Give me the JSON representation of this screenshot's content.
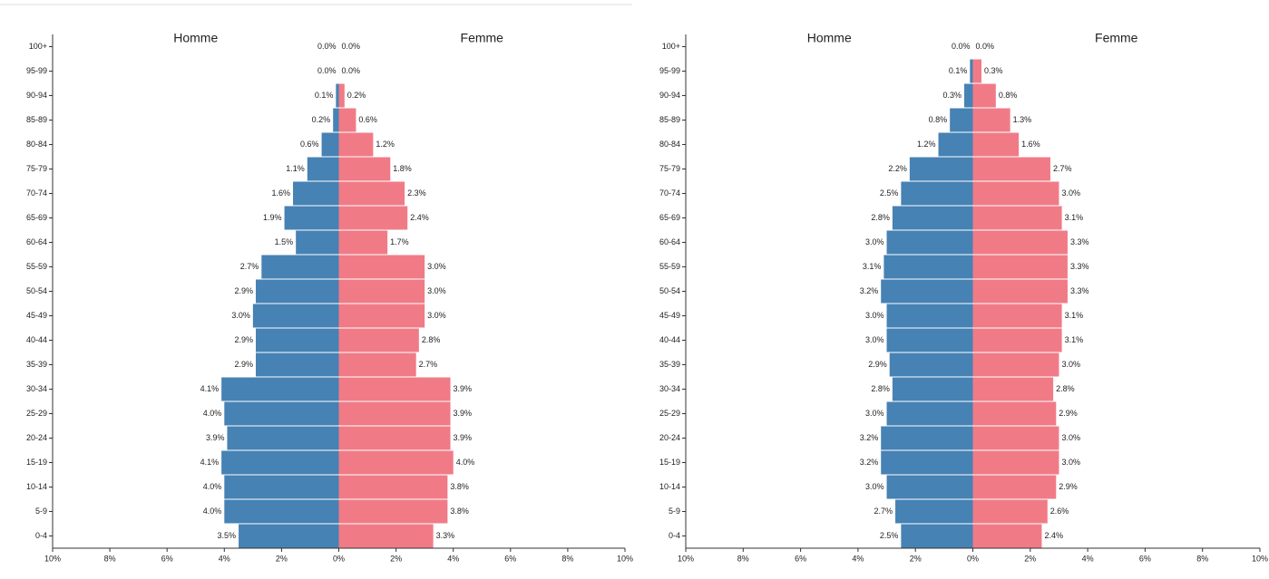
{
  "chart_data": [
    {
      "type": "pyramid",
      "categories": [
        "0-4",
        "5-9",
        "10-14",
        "15-19",
        "20-24",
        "25-29",
        "30-34",
        "35-39",
        "40-44",
        "45-49",
        "50-54",
        "55-59",
        "60-64",
        "65-69",
        "70-74",
        "75-79",
        "80-84",
        "85-89",
        "90-94",
        "95-99",
        "100+"
      ],
      "series": [
        {
          "name": "Homme",
          "color": "#4682b4",
          "values": [
            3.5,
            4.0,
            4.0,
            4.1,
            3.9,
            4.0,
            4.1,
            2.9,
            2.9,
            3.0,
            2.9,
            2.7,
            1.5,
            1.9,
            1.6,
            1.1,
            0.6,
            0.2,
            0.1,
            0.0,
            0.0
          ],
          "value_labels": [
            "3.5%",
            "4.0%",
            "4.0%",
            "4.1%",
            "3.9%",
            "4.0%",
            "4.1%",
            "2.9%",
            "2.9%",
            "3.0%",
            "2.9%",
            "2.7%",
            "1.5%",
            "1.9%",
            "1.6%",
            "1.1%",
            "0.6%",
            "0.2%",
            "0.1%",
            "0.0%",
            "0.0%"
          ]
        },
        {
          "name": "Femme",
          "color": "#f07b87",
          "values": [
            3.3,
            3.8,
            3.8,
            4.0,
            3.9,
            3.9,
            3.9,
            2.7,
            2.8,
            3.0,
            3.0,
            3.0,
            1.7,
            2.4,
            2.3,
            1.8,
            1.2,
            0.6,
            0.2,
            0.0,
            0.0
          ],
          "value_labels": [
            "3.3%",
            "3.8%",
            "3.8%",
            "4.0%",
            "3.9%",
            "3.9%",
            "3.9%",
            "2.7%",
            "2.8%",
            "3.0%",
            "3.0%",
            "3.0%",
            "1.7%",
            "2.4%",
            "2.3%",
            "1.8%",
            "1.2%",
            "0.6%",
            "0.2%",
            "0.0%",
            "0.0%"
          ]
        }
      ],
      "xlim": [
        -10,
        10
      ],
      "xticks": [
        {
          "value": -10,
          "label": "10%"
        },
        {
          "value": -8,
          "label": "8%"
        },
        {
          "value": -6,
          "label": "6%"
        },
        {
          "value": -4,
          "label": "4%"
        },
        {
          "value": -2,
          "label": "2%"
        },
        {
          "value": 0,
          "label": "0%"
        },
        {
          "value": 2,
          "label": "2%"
        },
        {
          "value": 4,
          "label": "4%"
        },
        {
          "value": 6,
          "label": "6%"
        },
        {
          "value": 8,
          "label": "8%"
        },
        {
          "value": 10,
          "label": "10%"
        }
      ]
    },
    {
      "type": "pyramid",
      "categories": [
        "0-4",
        "5-9",
        "10-14",
        "15-19",
        "20-24",
        "25-29",
        "30-34",
        "35-39",
        "40-44",
        "45-49",
        "50-54",
        "55-59",
        "60-64",
        "65-69",
        "70-74",
        "75-79",
        "80-84",
        "85-89",
        "90-94",
        "95-99",
        "100+"
      ],
      "series": [
        {
          "name": "Homme",
          "color": "#4682b4",
          "values": [
            2.5,
            2.7,
            3.0,
            3.2,
            3.2,
            3.0,
            2.8,
            2.9,
            3.0,
            3.0,
            3.2,
            3.1,
            3.0,
            2.8,
            2.5,
            2.2,
            1.2,
            0.8,
            0.3,
            0.1,
            0.0
          ],
          "value_labels": [
            "2.5%",
            "2.7%",
            "3.0%",
            "3.2%",
            "3.2%",
            "3.0%",
            "2.8%",
            "2.9%",
            "3.0%",
            "3.0%",
            "3.2%",
            "3.1%",
            "3.0%",
            "2.8%",
            "2.5%",
            "2.2%",
            "1.2%",
            "0.8%",
            "0.3%",
            "0.1%",
            "0.0%"
          ]
        },
        {
          "name": "Femme",
          "color": "#f07b87",
          "values": [
            2.4,
            2.6,
            2.9,
            3.0,
            3.0,
            2.9,
            2.8,
            3.0,
            3.1,
            3.1,
            3.3,
            3.3,
            3.3,
            3.1,
            3.0,
            2.7,
            1.6,
            1.3,
            0.8,
            0.3,
            0.0
          ],
          "value_labels": [
            "2.4%",
            "2.6%",
            "2.9%",
            "3.0%",
            "3.0%",
            "2.9%",
            "2.8%",
            "3.0%",
            "3.1%",
            "3.1%",
            "3.3%",
            "3.3%",
            "3.3%",
            "3.1%",
            "3.0%",
            "2.7%",
            "1.6%",
            "1.3%",
            "0.8%",
            "0.3%",
            "0.0%"
          ]
        }
      ],
      "xlim": [
        -10,
        10
      ],
      "xticks": [
        {
          "value": -10,
          "label": "10%"
        },
        {
          "value": -8,
          "label": "8%"
        },
        {
          "value": -6,
          "label": "6%"
        },
        {
          "value": -4,
          "label": "4%"
        },
        {
          "value": -2,
          "label": "2%"
        },
        {
          "value": 0,
          "label": "0%"
        },
        {
          "value": 2,
          "label": "2%"
        },
        {
          "value": 4,
          "label": "4%"
        },
        {
          "value": 6,
          "label": "6%"
        },
        {
          "value": 8,
          "label": "8%"
        },
        {
          "value": 10,
          "label": "10%"
        }
      ]
    }
  ]
}
